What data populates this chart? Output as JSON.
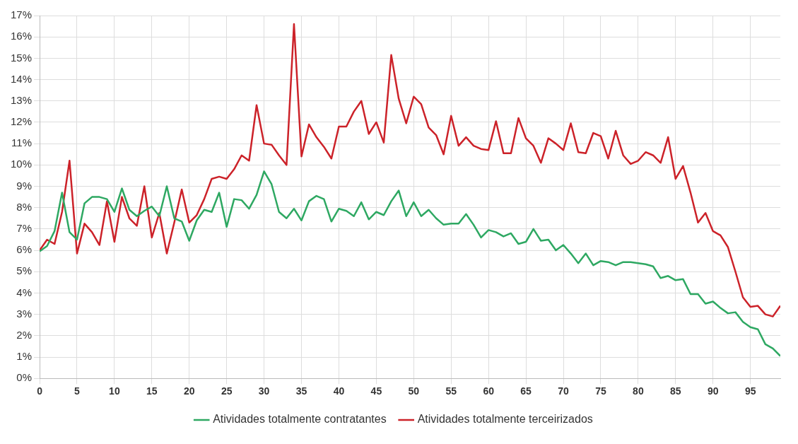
{
  "chart_data": {
    "type": "line",
    "x": [
      0,
      1,
      2,
      3,
      4,
      5,
      6,
      7,
      8,
      9,
      10,
      11,
      12,
      13,
      14,
      15,
      16,
      17,
      18,
      19,
      20,
      21,
      22,
      23,
      24,
      25,
      26,
      27,
      28,
      29,
      30,
      31,
      32,
      33,
      34,
      35,
      36,
      37,
      38,
      39,
      40,
      41,
      42,
      43,
      44,
      45,
      46,
      47,
      48,
      49,
      50,
      51,
      52,
      53,
      54,
      55,
      56,
      57,
      58,
      59,
      60,
      61,
      62,
      63,
      64,
      65,
      66,
      67,
      68,
      69,
      70,
      71,
      72,
      73,
      74,
      75,
      76,
      77,
      78,
      79,
      80,
      81,
      82,
      83,
      84,
      85,
      86,
      87,
      88,
      89,
      90,
      91,
      92,
      93,
      94,
      95,
      96,
      97,
      98,
      99
    ],
    "series": [
      {
        "name": "Atividades totalmente contratantes",
        "color": "#2ea862",
        "values": [
          5.95,
          6.2,
          6.9,
          8.7,
          6.85,
          6.5,
          8.2,
          8.5,
          8.5,
          8.4,
          7.8,
          8.9,
          7.9,
          7.6,
          7.85,
          8.05,
          7.6,
          9.0,
          7.5,
          7.35,
          6.45,
          7.4,
          7.9,
          7.8,
          8.7,
          7.1,
          8.4,
          8.35,
          7.95,
          8.6,
          9.7,
          9.1,
          7.8,
          7.5,
          7.95,
          7.4,
          8.3,
          8.55,
          8.4,
          7.35,
          7.95,
          7.85,
          7.6,
          8.25,
          7.45,
          7.8,
          7.65,
          8.3,
          8.8,
          7.6,
          8.25,
          7.6,
          7.9,
          7.5,
          7.2,
          7.25,
          7.25,
          7.7,
          7.2,
          6.6,
          6.95,
          6.85,
          6.65,
          6.8,
          6.3,
          6.4,
          7.0,
          6.45,
          6.5,
          6.0,
          6.25,
          5.85,
          5.4,
          5.85,
          5.3,
          5.5,
          5.45,
          5.3,
          5.45,
          5.45,
          5.4,
          5.35,
          5.25,
          4.7,
          4.8,
          4.6,
          4.65,
          3.95,
          3.95,
          3.5,
          3.6,
          3.3,
          3.05,
          3.1,
          2.65,
          2.4,
          2.3,
          1.6,
          1.4,
          1.05
        ]
      },
      {
        "name": "Atividades totalmente terceirizados",
        "color": "#cc2229",
        "values": [
          6.0,
          6.5,
          6.3,
          7.8,
          10.2,
          5.85,
          7.25,
          6.85,
          6.25,
          8.3,
          6.4,
          8.5,
          7.5,
          7.15,
          9.0,
          6.6,
          7.75,
          5.85,
          7.3,
          8.85,
          7.3,
          7.65,
          8.4,
          9.35,
          9.45,
          9.35,
          9.8,
          10.45,
          10.2,
          12.8,
          11.0,
          10.95,
          10.45,
          10.0,
          16.6,
          10.4,
          11.9,
          11.3,
          10.85,
          10.3,
          11.8,
          11.8,
          12.5,
          13.0,
          11.45,
          12.0,
          11.05,
          15.15,
          13.1,
          11.95,
          13.2,
          12.85,
          11.75,
          11.4,
          10.5,
          12.3,
          10.9,
          11.3,
          10.9,
          10.75,
          10.7,
          12.05,
          10.55,
          10.55,
          12.2,
          11.25,
          10.9,
          10.1,
          11.25,
          11.0,
          10.7,
          11.95,
          10.6,
          10.55,
          11.5,
          11.35,
          10.3,
          11.6,
          10.45,
          10.05,
          10.2,
          10.6,
          10.45,
          10.1,
          11.3,
          9.35,
          9.95,
          8.7,
          7.3,
          7.75,
          6.9,
          6.7,
          6.15,
          5.0,
          3.8,
          3.35,
          3.4,
          3.0,
          2.9,
          3.4
        ]
      }
    ],
    "xlim": [
      0,
      99
    ],
    "xticks": [
      0,
      5,
      10,
      15,
      20,
      25,
      30,
      35,
      40,
      45,
      50,
      55,
      60,
      65,
      70,
      75,
      80,
      85,
      90,
      95
    ],
    "ylim": [
      0,
      17
    ],
    "yticks": [
      {
        "value": 0,
        "label": "0%"
      },
      {
        "value": 1,
        "label": "1%"
      },
      {
        "value": 2,
        "label": "2%"
      },
      {
        "value": 3,
        "label": "3%"
      },
      {
        "value": 4,
        "label": "4%"
      },
      {
        "value": 5,
        "label": "5%"
      },
      {
        "value": 6,
        "label": "6%"
      },
      {
        "value": 7,
        "label": "7%"
      },
      {
        "value": 8,
        "label": "8%"
      },
      {
        "value": 9,
        "label": "9%"
      },
      {
        "value": 10,
        "label": "10%"
      },
      {
        "value": 11,
        "label": "11%"
      },
      {
        "value": 12,
        "label": "12%"
      },
      {
        "value": 13,
        "label": "13%"
      },
      {
        "value": 14,
        "label": "14%"
      },
      {
        "value": 15,
        "label": "15%"
      },
      {
        "value": 16,
        "label": "16%"
      },
      {
        "value": 17,
        "label": "17%"
      }
    ],
    "grid": true,
    "legend": "bottom",
    "marker": "none",
    "line_style": "solid"
  }
}
